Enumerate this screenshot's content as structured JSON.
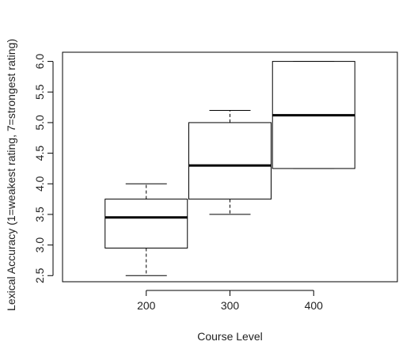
{
  "chart_data": {
    "type": "boxplot",
    "title": "",
    "xlabel": "Course Level",
    "ylabel": "Lexical Accuracy (1=weakest rating, 7=strongest rating)",
    "categories": [
      "200",
      "300",
      "400"
    ],
    "ylim": [
      2.4,
      6.15
    ],
    "yticks": [
      2.5,
      3.0,
      3.5,
      4.0,
      4.5,
      5.0,
      5.5,
      6.0
    ],
    "ytick_labels": [
      "2.5",
      "3.0",
      "3.5",
      "4.0",
      "4.5",
      "5.0",
      "5.5",
      "6.0"
    ],
    "boxes": [
      {
        "category": "200",
        "min": 2.5,
        "q1": 2.95,
        "median": 3.45,
        "q3": 3.75,
        "max": 4.0
      },
      {
        "category": "300",
        "min": 3.5,
        "q1": 3.75,
        "median": 4.3,
        "q3": 5.0,
        "max": 5.2
      },
      {
        "category": "400",
        "min": 4.25,
        "q1": 4.25,
        "median": 5.12,
        "q3": 6.0,
        "max": 6.0
      }
    ],
    "grid": false,
    "colors": {
      "box_fill": "#ffffff",
      "stroke": "#000000"
    }
  }
}
